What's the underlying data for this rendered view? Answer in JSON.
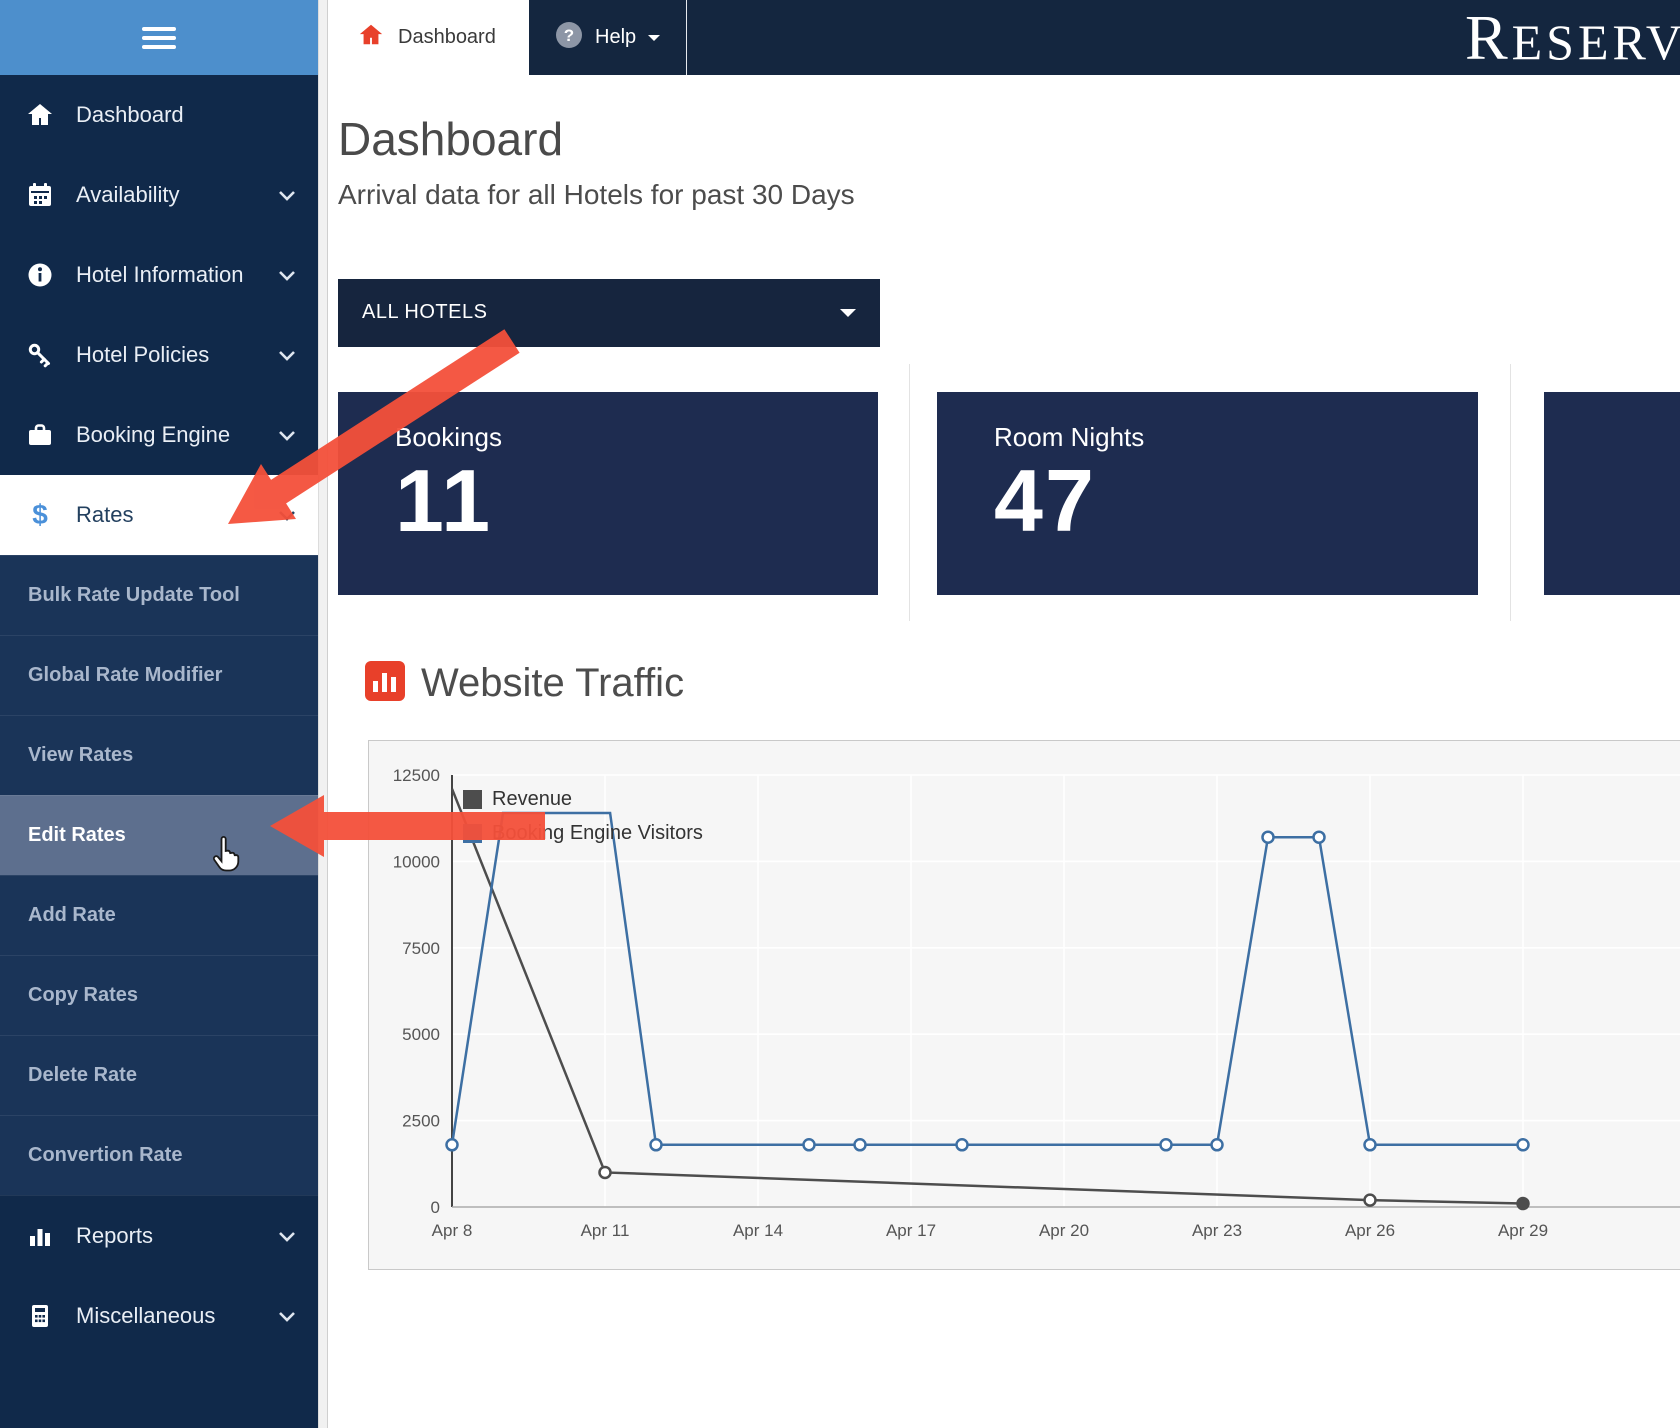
{
  "topbar": {
    "active_tab": "Dashboard",
    "help_label": "Help",
    "logo_text": "RESERV"
  },
  "sidebar": {
    "items": [
      {
        "label": "Dashboard"
      },
      {
        "label": "Availability"
      },
      {
        "label": "Hotel Information"
      },
      {
        "label": "Hotel Policies"
      },
      {
        "label": "Booking Engine"
      },
      {
        "label": "Rates"
      }
    ],
    "rates_submenu": [
      {
        "label": "Bulk Rate Update Tool"
      },
      {
        "label": "Global Rate Modifier"
      },
      {
        "label": "View Rates"
      },
      {
        "label": "Edit Rates"
      },
      {
        "label": "Add Rate"
      },
      {
        "label": "Copy Rates"
      },
      {
        "label": "Delete Rate"
      },
      {
        "label": "Convertion Rate"
      }
    ],
    "footer_items": [
      {
        "label": "Reports"
      },
      {
        "label": "Miscellaneous"
      }
    ]
  },
  "main": {
    "title": "Dashboard",
    "subtitle": "Arrival data for all Hotels for past 30 Days",
    "hotel_selector": "ALL HOTELS",
    "stats": [
      {
        "label": "Bookings",
        "value": "11"
      },
      {
        "label": "Room Nights",
        "value": "47"
      }
    ],
    "traffic_title": "Website Traffic"
  },
  "colors": {
    "accent_red": "#ee4b36",
    "navy": "#10294a",
    "card_navy": "#1e2c50",
    "link_blue": "#4a90d9"
  },
  "chart_data": {
    "type": "line",
    "title": "Website Traffic",
    "ylim": [
      0,
      12500
    ],
    "yticks": [
      0,
      2500,
      5000,
      7500,
      10000,
      12500
    ],
    "xticks": [
      {
        "day": 8,
        "label": "Apr 8"
      },
      {
        "day": 11,
        "label": "Apr 11"
      },
      {
        "day": 14,
        "label": "Apr 14"
      },
      {
        "day": 17,
        "label": "Apr 17"
      },
      {
        "day": 20,
        "label": "Apr 20"
      },
      {
        "day": 23,
        "label": "Apr 23"
      },
      {
        "day": 26,
        "label": "Apr 26"
      },
      {
        "day": 29,
        "label": "Apr 29"
      }
    ],
    "grid": true,
    "legend_position": "top-left",
    "series": [
      {
        "name": "Revenue",
        "color": "#4d4d4d",
        "points": [
          {
            "day": 8,
            "v": 12100,
            "m": false
          },
          {
            "day": 11,
            "v": 1000,
            "m": true
          },
          {
            "day": 26,
            "v": 200,
            "m": true
          },
          {
            "day": 29,
            "v": 100,
            "m": true,
            "fill": "#4d4d4d"
          }
        ]
      },
      {
        "name": "Booking Engine Visitors",
        "color": "#3d6fa3",
        "points": [
          {
            "day": 8,
            "v": 1800,
            "m": true
          },
          {
            "day": 9,
            "v": 11400,
            "m": false
          },
          {
            "day": 11.1,
            "v": 11400,
            "m": false
          },
          {
            "day": 12,
            "v": 1800,
            "m": true
          },
          {
            "day": 15,
            "v": 1800,
            "m": true
          },
          {
            "day": 16,
            "v": 1800,
            "m": true
          },
          {
            "day": 18,
            "v": 1800,
            "m": true
          },
          {
            "day": 22,
            "v": 1800,
            "m": true
          },
          {
            "day": 23,
            "v": 1800,
            "m": true
          },
          {
            "day": 24,
            "v": 10700,
            "m": true
          },
          {
            "day": 25,
            "v": 10700,
            "m": true
          },
          {
            "day": 26,
            "v": 1800,
            "m": true
          },
          {
            "day": 29,
            "v": 1800,
            "m": true
          }
        ]
      }
    ]
  }
}
